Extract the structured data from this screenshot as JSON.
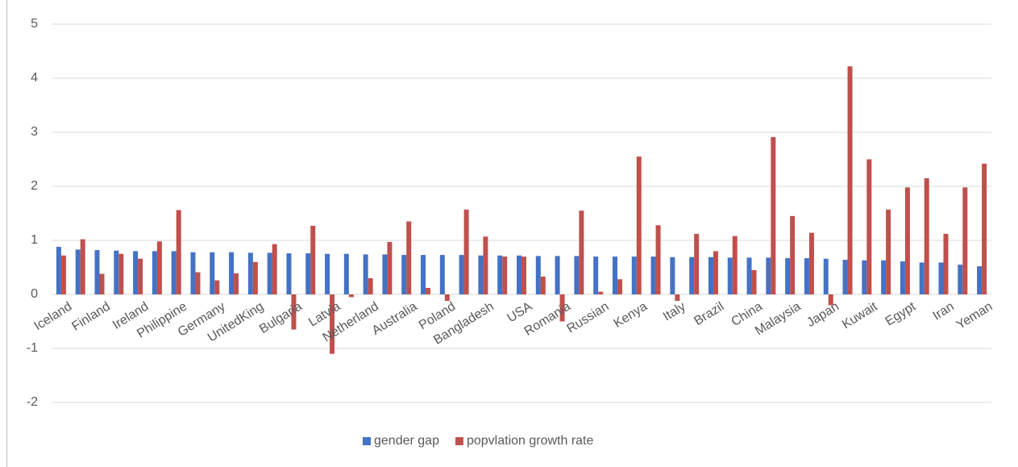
{
  "chart_data": {
    "type": "bar",
    "categories": [
      "Iceland",
      null,
      "Finland",
      null,
      "Ireland",
      null,
      "Philippine",
      null,
      "Germany",
      null,
      "UnitedKing",
      null,
      "Bulgaria",
      null,
      "Latvia",
      null,
      "Netherland",
      null,
      "Australia",
      null,
      "Poland",
      null,
      "Bangladesh",
      null,
      "USA",
      null,
      "Romania",
      null,
      "Russian",
      null,
      "Kenya",
      null,
      "Italy",
      null,
      "Brazil",
      null,
      "China",
      null,
      "Malaysia",
      null,
      "Japan",
      null,
      "Kuwait",
      null,
      "Egypt",
      null,
      "Iran",
      null,
      "Yeman"
    ],
    "series": [
      {
        "name": "gender gap",
        "color": "#4472c4",
        "values": [
          0.88,
          0.83,
          0.82,
          0.81,
          0.8,
          0.8,
          0.8,
          0.78,
          0.78,
          0.78,
          0.77,
          0.77,
          0.76,
          0.76,
          0.75,
          0.75,
          0.74,
          0.74,
          0.73,
          0.73,
          0.73,
          0.73,
          0.72,
          0.72,
          0.72,
          0.71,
          0.71,
          0.71,
          0.7,
          0.7,
          0.7,
          0.7,
          0.69,
          0.69,
          0.69,
          0.68,
          0.68,
          0.68,
          0.67,
          0.67,
          0.66,
          0.64,
          0.63,
          0.63,
          0.61,
          0.59,
          0.59,
          0.55,
          0.52
        ]
      },
      {
        "name": "popvlation growth rate",
        "color": "#c0504d",
        "values": [
          0.72,
          1.02,
          0.38,
          0.75,
          0.66,
          0.98,
          1.56,
          0.41,
          0.26,
          0.39,
          0.6,
          0.93,
          -0.65,
          1.27,
          -1.1,
          -0.05,
          0.3,
          0.97,
          1.35,
          0.12,
          -0.12,
          1.57,
          1.07,
          0.7,
          0.7,
          0.33,
          -0.5,
          1.55,
          0.05,
          0.28,
          2.55,
          1.28,
          -0.12,
          1.12,
          0.8,
          1.08,
          0.45,
          2.91,
          1.45,
          1.14,
          -0.2,
          4.22,
          2.5,
          1.57,
          1.98,
          2.15,
          1.12,
          1.98,
          2.42
        ]
      }
    ],
    "ylim": [
      -2,
      5
    ],
    "yticks": [
      -2,
      -1,
      0,
      1,
      2,
      3,
      4,
      5
    ],
    "grid": true,
    "legend": "bottom"
  }
}
